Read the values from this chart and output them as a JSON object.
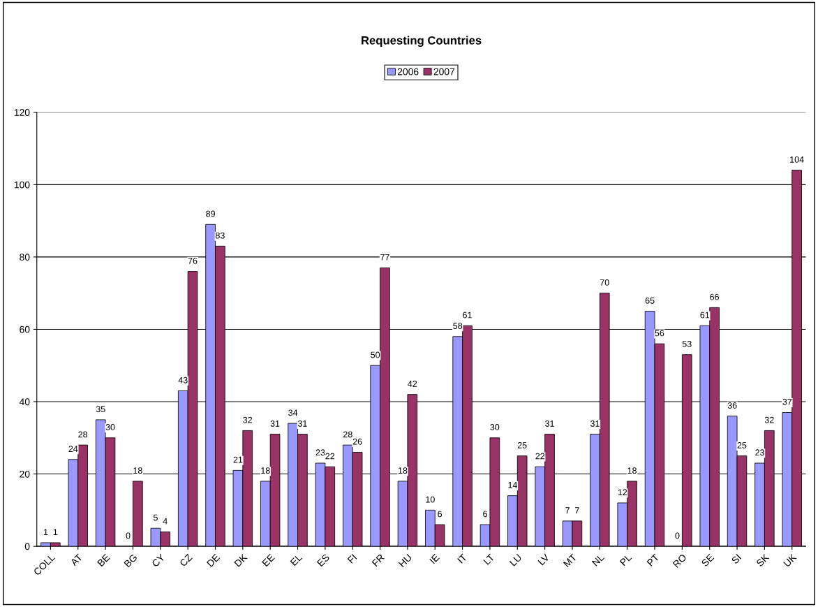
{
  "chart_data": {
    "type": "bar",
    "title": "Requesting Countries",
    "categories": [
      "COLL",
      "AT",
      "BE",
      "BG",
      "CY",
      "CZ",
      "DE",
      "DK",
      "EE",
      "EL",
      "ES",
      "FI",
      "FR",
      "HU",
      "IE",
      "IT",
      "LT",
      "LU",
      "LV",
      "MT",
      "NL",
      "PL",
      "PT",
      "RO",
      "SE",
      "SI",
      "SK",
      "UK"
    ],
    "series": [
      {
        "name": "2006",
        "color": "#9999ff",
        "values": [
          1,
          24,
          35,
          0,
          5,
          43,
          89,
          21,
          18,
          34,
          23,
          28,
          50,
          18,
          10,
          58,
          6,
          14,
          22,
          7,
          31,
          12,
          65,
          0,
          61,
          36,
          23,
          37
        ]
      },
      {
        "name": "2007",
        "color": "#993366",
        "values": [
          1,
          28,
          30,
          18,
          4,
          76,
          83,
          32,
          31,
          31,
          22,
          26,
          77,
          42,
          6,
          61,
          30,
          25,
          31,
          7,
          70,
          18,
          56,
          53,
          66,
          25,
          32,
          104
        ]
      }
    ],
    "ylim": [
      0,
      120
    ],
    "yticks": [
      0,
      20,
      40,
      60,
      80,
      100,
      120
    ],
    "grid": "y",
    "legend": "top",
    "data_labels": true
  }
}
